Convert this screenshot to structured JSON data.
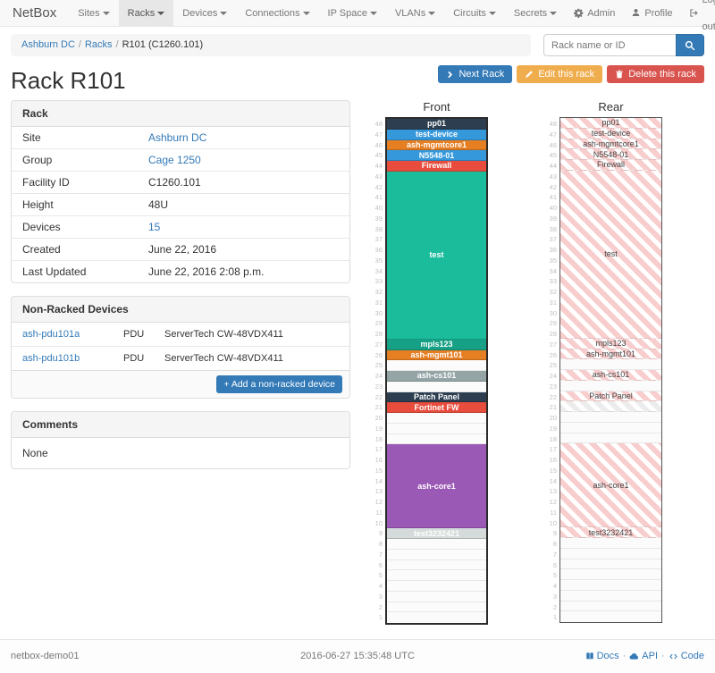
{
  "navbar": {
    "brand": "NetBox",
    "items": [
      {
        "label": "Sites",
        "active": false
      },
      {
        "label": "Racks",
        "active": true
      },
      {
        "label": "Devices",
        "active": false
      },
      {
        "label": "Connections",
        "active": false
      },
      {
        "label": "IP Space",
        "active": false
      },
      {
        "label": "VLANs",
        "active": false
      },
      {
        "label": "Circuits",
        "active": false
      },
      {
        "label": "Secrets",
        "active": false
      }
    ],
    "right": [
      {
        "label": "Admin",
        "icon": "gear-icon"
      },
      {
        "label": "Profile",
        "icon": "person-icon"
      },
      {
        "label": "Log out",
        "icon": "logout-icon"
      }
    ]
  },
  "breadcrumb": {
    "items": [
      {
        "label": "Ashburn DC",
        "link": true
      },
      {
        "label": "Racks",
        "link": true
      },
      {
        "label": "R101 (C1260.101)",
        "link": false
      }
    ]
  },
  "search": {
    "placeholder": "Rack name or ID"
  },
  "actions": {
    "next_label": "Next Rack",
    "edit_label": "Edit this rack",
    "delete_label": "Delete this rack"
  },
  "page_title": "Rack R101",
  "rack_panel": {
    "title": "Rack",
    "rows": [
      {
        "label": "Site",
        "value": "Ashburn DC",
        "link": true
      },
      {
        "label": "Group",
        "value": "Cage 1250",
        "link": true
      },
      {
        "label": "Facility ID",
        "value": "C1260.101",
        "link": false
      },
      {
        "label": "Height",
        "value": "48U",
        "link": false
      },
      {
        "label": "Devices",
        "value": "15",
        "link": true
      },
      {
        "label": "Created",
        "value": "June 22, 2016",
        "link": false
      },
      {
        "label": "Last Updated",
        "value": "June 22, 2016 2:08 p.m.",
        "link": false
      }
    ]
  },
  "non_racked_panel": {
    "title": "Non-Racked Devices",
    "add_label": "Add a non-racked device",
    "rows": [
      {
        "name": "ash-pdu101a",
        "role": "PDU",
        "type": "ServerTech CW-48VDX411"
      },
      {
        "name": "ash-pdu101b",
        "role": "PDU",
        "type": "ServerTech CW-48VDX411"
      }
    ]
  },
  "comments_panel": {
    "title": "Comments",
    "body": "None"
  },
  "elevation": {
    "front_title": "Front",
    "rear_title": "Rear",
    "units_total": 48,
    "colors": {
      "rear_stripe": "#f8cdcd",
      "rear_stripe_hidden": "#ececec",
      "navy": "#2c3e50",
      "blue": "#3498db",
      "orange": "#e67e22",
      "red": "#e74c3c",
      "teal": "#1abc9c",
      "teal_dark": "#16a085",
      "gray": "#95a5a6",
      "purple": "#9b59b6",
      "light_gray": "#d5dbdb"
    },
    "devices": [
      {
        "name": "pp01",
        "top_u": 48,
        "height": 1,
        "color": "#2c3e50"
      },
      {
        "name": "test-device",
        "top_u": 47,
        "height": 1,
        "color": "#3498db"
      },
      {
        "name": "ash-mgmtcore1",
        "top_u": 46,
        "height": 1,
        "color": "#e67e22"
      },
      {
        "name": "N5548-01",
        "top_u": 45,
        "height": 1,
        "color": "#3498db"
      },
      {
        "name": "Firewall",
        "top_u": 44,
        "height": 1,
        "color": "#e74c3c"
      },
      {
        "name": "test",
        "top_u": 43,
        "height": 16,
        "color": "#1abc9c"
      },
      {
        "name": "mpls123",
        "top_u": 27,
        "height": 1,
        "color": "#16a085"
      },
      {
        "name": "ash-mgmt101",
        "top_u": 26,
        "height": 1,
        "color": "#e67e22"
      },
      {
        "name": "ash-cs101",
        "top_u": 24,
        "height": 1,
        "color": "#95a5a6"
      },
      {
        "name": "Patch Panel",
        "top_u": 22,
        "height": 1,
        "color": "#2c3e50"
      },
      {
        "name": "Fortinet FW",
        "top_u": 21,
        "height": 1,
        "color": "#e74c3c",
        "rear": "hidden"
      },
      {
        "name": "ash-core1",
        "top_u": 17,
        "height": 8,
        "color": "#9b59b6"
      },
      {
        "name": "test3232421",
        "top_u": 9,
        "height": 1,
        "color": "#d5dbdb"
      }
    ]
  },
  "footer": {
    "hostname": "netbox-demo01",
    "timestamp": "2016-06-27 15:35:48 UTC",
    "links": [
      {
        "label": "Docs",
        "icon": "book-icon"
      },
      {
        "label": "API",
        "icon": "cloud-icon"
      },
      {
        "label": "Code",
        "icon": "code-icon"
      }
    ]
  }
}
